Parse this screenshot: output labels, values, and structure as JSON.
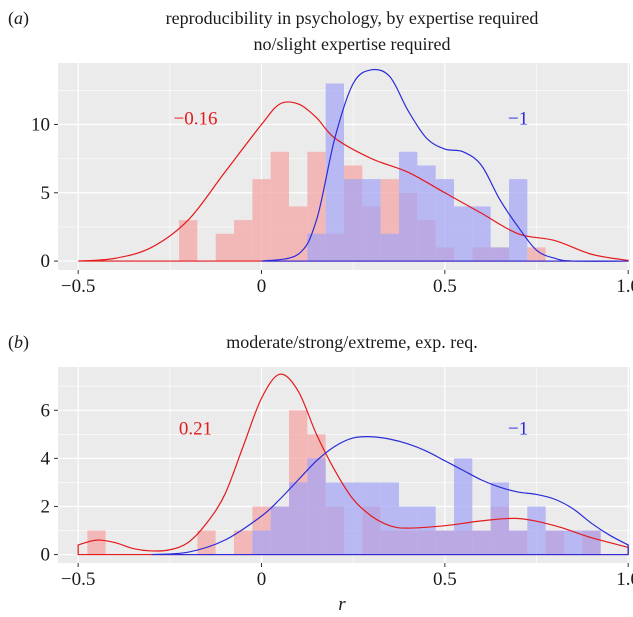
{
  "figure": {
    "xlabel": "r"
  },
  "colors": {
    "red": "#e41a1c",
    "blue": "#2b2bd9",
    "red_fill": "#f4a3a3",
    "blue_fill": "#a3a3f4",
    "panel_bg": "#ebebeb",
    "grid": "#ffffff"
  },
  "chart_data": [
    {
      "type": "bar",
      "panel_label": "(a)",
      "title": "reproducibility in psychology, by expertise required",
      "subtitle": "no/slight expertise required",
      "xlim": [
        -0.5,
        1.0
      ],
      "ylim": [
        0,
        14.5
      ],
      "xticks": [
        -0.5,
        0,
        0.5,
        1.0
      ],
      "xtick_labels": [
        "−0.5",
        "0",
        "0.5",
        "1.0"
      ],
      "yticks": [
        0,
        5,
        10
      ],
      "ytick_labels": [
        "0",
        "5",
        "10"
      ],
      "bin_width": 0.05,
      "series": [
        {
          "color": "red",
          "annotation": "−0.16",
          "annotation_pos": [
            -0.18,
            10.0
          ],
          "bins_left": [
            -0.225,
            -0.175,
            -0.125,
            -0.075,
            -0.025,
            0.025,
            0.075,
            0.125,
            0.175,
            0.225,
            0.275,
            0.325,
            0.375,
            0.425,
            0.475,
            0.525,
            0.575,
            0.625,
            0.675,
            0.725,
            0.775
          ],
          "counts": [
            3,
            0,
            2,
            3,
            6,
            8,
            4,
            8,
            2,
            7,
            4,
            6,
            5,
            3,
            1,
            0,
            1,
            1,
            0,
            1,
            0
          ],
          "density_x": [
            -0.5,
            -0.4,
            -0.3,
            -0.2,
            -0.1,
            0.0,
            0.05,
            0.1,
            0.15,
            0.2,
            0.3,
            0.4,
            0.5,
            0.6,
            0.7,
            0.8,
            0.9,
            1.0
          ],
          "density_y": [
            0.0,
            0.2,
            1.0,
            3.0,
            6.5,
            10.0,
            11.5,
            11.5,
            10.5,
            9.0,
            7.5,
            6.5,
            5.0,
            3.5,
            2.0,
            1.5,
            0.5,
            0.05
          ]
        },
        {
          "color": "blue",
          "annotation": "−1",
          "annotation_pos": [
            0.7,
            10.0
          ],
          "bins_left": [
            0.125,
            0.175,
            0.225,
            0.275,
            0.325,
            0.375,
            0.425,
            0.475,
            0.525,
            0.575,
            0.625,
            0.675,
            0.725
          ],
          "counts": [
            2,
            13,
            6,
            6,
            2,
            8,
            7,
            6,
            4,
            4,
            1,
            6,
            0
          ],
          "density_x": [
            0.0,
            0.1,
            0.15,
            0.2,
            0.25,
            0.3,
            0.35,
            0.4,
            0.45,
            0.5,
            0.55,
            0.6,
            0.65,
            0.7,
            0.75,
            0.8,
            0.85,
            1.0
          ],
          "density_y": [
            0.0,
            0.5,
            3.0,
            9.0,
            13.0,
            14.0,
            13.5,
            11.0,
            9.0,
            8.2,
            8.0,
            7.0,
            4.5,
            2.5,
            0.8,
            0.2,
            0.0,
            0.0
          ]
        }
      ]
    },
    {
      "type": "bar",
      "panel_label": "(b)",
      "title": "moderate/strong/extreme, exp. req.",
      "xlim": [
        -0.5,
        1.0
      ],
      "ylim": [
        0,
        7.8
      ],
      "xticks": [
        -0.5,
        0,
        0.5,
        1.0
      ],
      "xtick_labels": [
        "−0.5",
        "0",
        "0.5",
        "1.0"
      ],
      "yticks": [
        0,
        2,
        4,
        6
      ],
      "ytick_labels": [
        "0",
        "2",
        "4",
        "6"
      ],
      "bin_width": 0.05,
      "series": [
        {
          "color": "red",
          "annotation": "0.21",
          "annotation_pos": [
            -0.18,
            5.0
          ],
          "bins_left": [
            -0.475,
            -0.425,
            -0.375,
            -0.325,
            -0.275,
            -0.225,
            -0.175,
            -0.125,
            -0.075,
            -0.025,
            0.025,
            0.075,
            0.125,
            0.175,
            0.225,
            0.275,
            0.325,
            0.375,
            0.425,
            0.475,
            0.525,
            0.575,
            0.625,
            0.675,
            0.725,
            0.775,
            0.825,
            0.875
          ],
          "counts": [
            1,
            0,
            0,
            0,
            0,
            0,
            1,
            0,
            1,
            2,
            2,
            6,
            5,
            2,
            0,
            2,
            1,
            1,
            1,
            1,
            1,
            1,
            2,
            1,
            0,
            1,
            0,
            1
          ],
          "density_x": [
            -0.5,
            -0.45,
            -0.4,
            -0.35,
            -0.3,
            -0.25,
            -0.2,
            -0.15,
            -0.1,
            -0.05,
            0.0,
            0.05,
            0.1,
            0.15,
            0.2,
            0.25,
            0.3,
            0.35,
            0.4,
            0.5,
            0.6,
            0.7,
            0.8,
            0.9,
            1.0
          ],
          "density_y": [
            0.4,
            0.6,
            0.5,
            0.25,
            0.15,
            0.2,
            0.5,
            1.3,
            2.5,
            4.5,
            6.5,
            7.5,
            6.8,
            5.0,
            3.5,
            2.3,
            1.6,
            1.2,
            1.1,
            1.2,
            1.4,
            1.5,
            1.2,
            0.7,
            0.3
          ]
        },
        {
          "color": "blue",
          "annotation": "−1",
          "annotation_pos": [
            0.7,
            5.0
          ],
          "bins_left": [
            -0.025,
            0.025,
            0.075,
            0.125,
            0.175,
            0.225,
            0.275,
            0.325,
            0.375,
            0.425,
            0.475,
            0.525,
            0.575,
            0.625,
            0.675,
            0.725,
            0.775,
            0.825,
            0.875
          ],
          "counts": [
            1,
            2,
            3,
            4,
            3,
            3,
            3,
            3,
            2,
            2,
            1,
            4,
            1,
            3,
            1,
            2,
            1,
            1,
            1
          ],
          "density_x": [
            -0.3,
            -0.2,
            -0.1,
            0.0,
            0.05,
            0.1,
            0.15,
            0.2,
            0.25,
            0.3,
            0.35,
            0.4,
            0.45,
            0.5,
            0.55,
            0.6,
            0.65,
            0.7,
            0.75,
            0.8,
            0.85,
            0.9,
            0.95,
            1.0
          ],
          "density_y": [
            0.0,
            0.1,
            0.6,
            1.6,
            2.3,
            3.1,
            3.9,
            4.5,
            4.85,
            4.9,
            4.8,
            4.6,
            4.3,
            3.9,
            3.5,
            3.1,
            2.8,
            2.6,
            2.5,
            2.3,
            1.9,
            1.3,
            0.8,
            0.4
          ]
        }
      ]
    }
  ]
}
